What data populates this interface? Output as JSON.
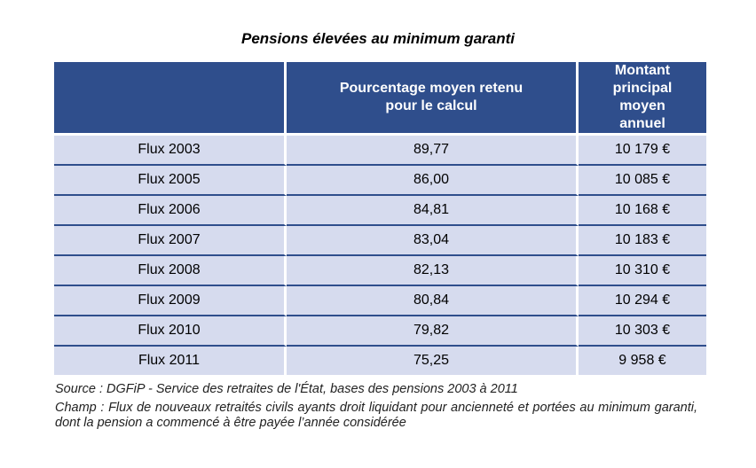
{
  "title": "Pensions élevées au minimum garanti",
  "headers": [
    "",
    "Pourcentage moyen retenu pour le calcul",
    "Montant principal moyen annuel"
  ],
  "rows": [
    [
      "Flux 2003",
      "89,77",
      "10 179 €"
    ],
    [
      "Flux 2005",
      "86,00",
      "10 085 €"
    ],
    [
      "Flux 2006",
      "84,81",
      "10 168 €"
    ],
    [
      "Flux 2007",
      "83,04",
      "10 183 €"
    ],
    [
      "Flux 2008",
      "82,13",
      "10 310 €"
    ],
    [
      "Flux 2009",
      "80,84",
      "10 294 €"
    ],
    [
      "Flux 2010",
      "79,82",
      "10 303 €"
    ],
    [
      "Flux 2011",
      "75,25",
      "9 958 €"
    ]
  ],
  "source": "Source : DGFiP - Service des retraites de l'État, bases des pensions 2003 à 2011",
  "champ": "Champ : Flux de nouveaux retraités civils ayants droit liquidant pour ancienneté et portées au minimum garanti, dont la pension a commencé à être payée l’année considérée"
}
